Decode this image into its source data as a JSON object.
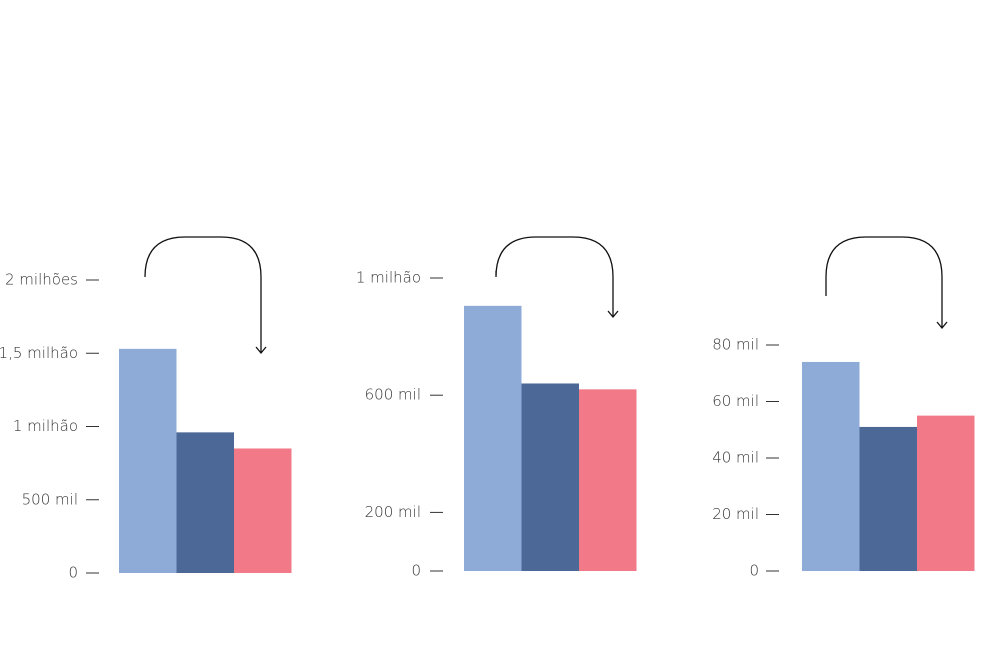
{
  "colors": {
    "series_1": "#8eabd8",
    "series_2": "#4c6897",
    "series_3": "#f27a88",
    "text": "#333333",
    "arrow": "#111111"
  },
  "chart_data": [
    {
      "type": "bar",
      "categories": [
        ""
      ],
      "series": [
        {
          "values": [
            1530000
          ]
        },
        {
          "values": [
            960000
          ]
        },
        {
          "values": [
            850000
          ]
        }
      ],
      "ylim": [
        0,
        2000000
      ],
      "y_ticks": [
        {
          "value": 0,
          "label": "0"
        },
        {
          "value": 500000,
          "label": "500 mil"
        },
        {
          "value": 1000000,
          "label": "1 milhão"
        },
        {
          "value": 1500000,
          "label": "1,5 milhão"
        },
        {
          "value": 2000000,
          "label": "2 milhões"
        }
      ],
      "grid": false,
      "annotation": "arrow from first to last bar"
    },
    {
      "type": "bar",
      "categories": [
        ""
      ],
      "series": [
        {
          "values": [
            905000
          ]
        },
        {
          "values": [
            640000
          ]
        },
        {
          "values": [
            620000
          ]
        }
      ],
      "ylim": [
        0,
        1000000
      ],
      "y_ticks": [
        {
          "value": 0,
          "label": "0"
        },
        {
          "value": 200000,
          "label": "200 mil"
        },
        {
          "value": 600000,
          "label": "600 mil"
        },
        {
          "value": 1000000,
          "label": "1 milhão"
        }
      ],
      "grid": false,
      "annotation": "arrow from first to last bar"
    },
    {
      "type": "bar",
      "categories": [
        ""
      ],
      "series": [
        {
          "values": [
            74000
          ]
        },
        {
          "values": [
            51000
          ]
        },
        {
          "values": [
            55000
          ]
        }
      ],
      "ylim": [
        0,
        80000
      ],
      "y_ticks": [
        {
          "value": 0,
          "label": "0"
        },
        {
          "value": 20000,
          "label": "20 mil"
        },
        {
          "value": 40000,
          "label": "40 mil"
        },
        {
          "value": 60000,
          "label": "60 mil"
        },
        {
          "value": 80000,
          "label": "80 mil"
        }
      ],
      "grid": false,
      "annotation": "arrow from first to last bar"
    }
  ]
}
